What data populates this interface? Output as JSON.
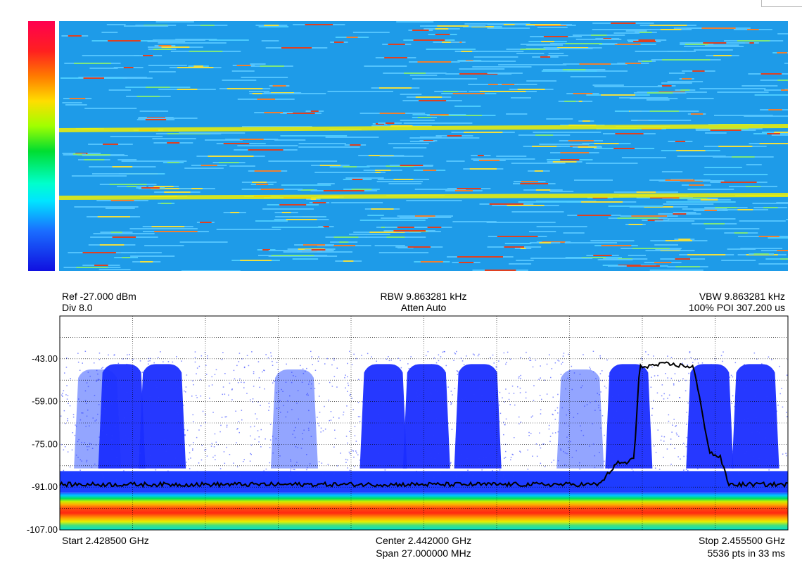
{
  "colors": {
    "trace": "#000000",
    "persistence_blue": "#1b2fff",
    "grid": "#000000",
    "waterfall_background": "#1e9be8"
  },
  "header": {
    "ref": "Ref -27.000 dBm",
    "div": "Div 8.0",
    "rbw": "RBW 9.863281 kHz",
    "atten": "Atten Auto",
    "vbw": "VBW 9.863281 kHz",
    "poi": "100% POI 307.200 us"
  },
  "footer": {
    "start": "Start 2.428500 GHz",
    "center": "Center 2.442000 GHz",
    "span": "Span 27.000000 MHz",
    "stop": "Stop 2.455500 GHz",
    "points": "5536 pts in 33 ms"
  },
  "chart_data": {
    "type": "line",
    "title": "",
    "xlabel": "",
    "ylabel": "",
    "x_unit": "GHz",
    "y_unit": "dBm",
    "xlim": [
      2.4285,
      2.4555
    ],
    "ylim": [
      -107,
      -27
    ],
    "y_ticks": [
      "-43.00",
      "-59.00",
      "-75.00",
      "-91.00",
      "-107.00"
    ],
    "grid": true,
    "series": [
      {
        "trace": "live",
        "x": [
          2.4285,
          2.431,
          2.434,
          2.437,
          2.44,
          2.443,
          2.446,
          2.4485,
          2.449,
          2.4492,
          2.4495,
          2.4498,
          2.45,
          2.451,
          2.452,
          2.4526,
          2.4528,
          2.453,
          2.4533,
          2.4555
        ],
        "values": [
          -90,
          -90,
          -90,
          -90,
          -90,
          -90,
          -90,
          -90,
          -84,
          -82,
          -82,
          -80,
          -46,
          -45,
          -46,
          -78,
          -79,
          -80,
          -90,
          -90
        ]
      }
    ],
    "persistence_bursts_center_ghz": [
      2.4299,
      2.4308,
      2.4323,
      2.4372,
      2.4405,
      2.4421,
      2.444,
      2.4478,
      2.4496,
      2.4526,
      2.4543
    ],
    "noise_floor_dbm": -90,
    "noise_band_dbm": [
      -93,
      -107
    ]
  }
}
